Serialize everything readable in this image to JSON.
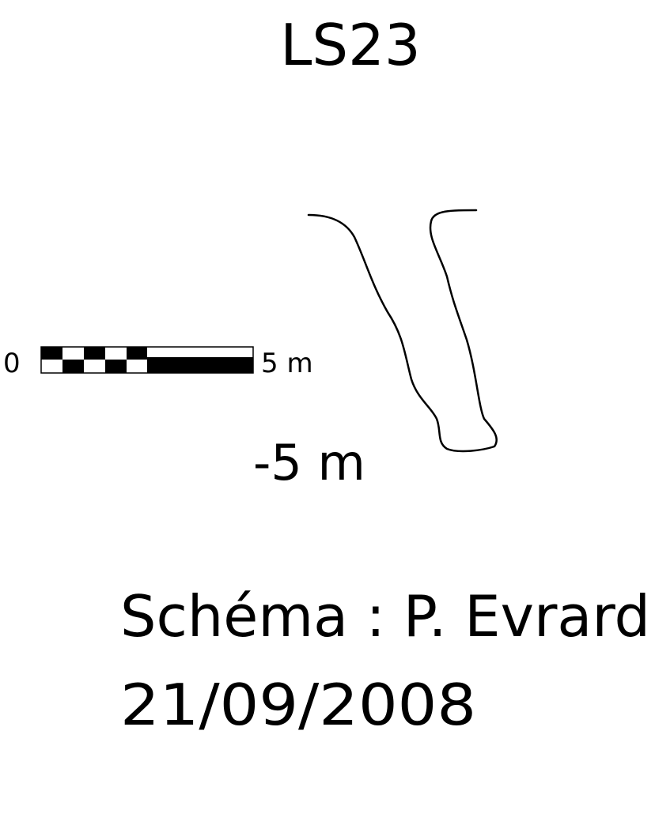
{
  "title": "LS23",
  "scale_bar": {
    "start_label": "0",
    "end_label": "5 m"
  },
  "depth_label": "-5 m",
  "credit": "Schéma : P. Evrard",
  "date": "21/09/2008"
}
